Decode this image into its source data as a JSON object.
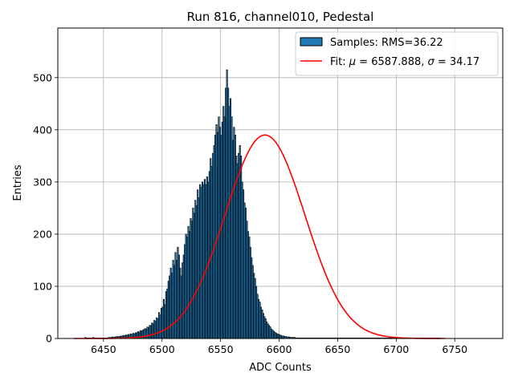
{
  "chart_data": {
    "type": "bar",
    "title": "Run 816, channel010, Pedestal",
    "xlabel": "ADC Counts",
    "ylabel": "Entries",
    "xlim": [
      6411,
      6791
    ],
    "ylim": [
      0,
      595
    ],
    "xticks": [
      6450,
      6500,
      6550,
      6600,
      6650,
      6700,
      6750
    ],
    "yticks": [
      0,
      100,
      200,
      300,
      400,
      500
    ],
    "grid": true,
    "legend_position": "top-right",
    "bar_color": "#1f77b4",
    "bar_edge_color": "#000000",
    "fit_color": "#ff0000",
    "legend": {
      "samples_label": "Samples: RMS=36.22",
      "fit_label_prefix": "Fit: ",
      "fit_mu_symbol": "μ",
      "fit_mu_text": " = 6587.888, ",
      "fit_sigma_symbol": "σ",
      "fit_sigma_text": " = 34.17"
    },
    "fit": {
      "mu": 6587.888,
      "sigma": 34.17,
      "amplitude": 390,
      "x_range": [
        6425,
        6742
      ]
    },
    "bin_start": 6434,
    "bin_width": 1,
    "counts": [
      2,
      1,
      1,
      1,
      1,
      1,
      1,
      2,
      1,
      1,
      1,
      1,
      1,
      1,
      1,
      1,
      1,
      1,
      1,
      1,
      2,
      2,
      2,
      3,
      2,
      3,
      3,
      4,
      3,
      4,
      4,
      5,
      5,
      6,
      5,
      7,
      6,
      8,
      7,
      9,
      8,
      10,
      9,
      11,
      11,
      13,
      12,
      15,
      14,
      16,
      17,
      19,
      18,
      22,
      21,
      25,
      25,
      30,
      28,
      35,
      33,
      40,
      38,
      50,
      45,
      58,
      60,
      75,
      65,
      90,
      95,
      110,
      120,
      135,
      125,
      150,
      140,
      165,
      150,
      175,
      160,
      135,
      120,
      145,
      160,
      180,
      200,
      195,
      215,
      205,
      230,
      225,
      250,
      240,
      265,
      255,
      285,
      270,
      295,
      290,
      300,
      295,
      305,
      295,
      310,
      300,
      320,
      345,
      330,
      355,
      370,
      390,
      410,
      395,
      425,
      405,
      390,
      415,
      445,
      425,
      480,
      515,
      480,
      445,
      460,
      425,
      380,
      405,
      390,
      350,
      335,
      355,
      370,
      350,
      300,
      285,
      260,
      250,
      225,
      205,
      195,
      175,
      155,
      140,
      125,
      115,
      100,
      85,
      75,
      70,
      60,
      55,
      48,
      42,
      38,
      32,
      28,
      25,
      22,
      18,
      16,
      14,
      12,
      10,
      9,
      8,
      7,
      6,
      5,
      5,
      4,
      4,
      3,
      3,
      3,
      2,
      2,
      2,
      2,
      2,
      1,
      1,
      1,
      1,
      1,
      1,
      1,
      1,
      1,
      1,
      1,
      1,
      1,
      1,
      1,
      1,
      1,
      1,
      1,
      1,
      1,
      1,
      1,
      1,
      1,
      1,
      1,
      1,
      1,
      1,
      1,
      1,
      1,
      1,
      1,
      1,
      1,
      1,
      1,
      1,
      1,
      1,
      1,
      1,
      1,
      1,
      1,
      1,
      1,
      1,
      1,
      1,
      1,
      1,
      1,
      1,
      1,
      1,
      1,
      1,
      1,
      1,
      1,
      1,
      1,
      1,
      1,
      1,
      1,
      1,
      1,
      1,
      1,
      1,
      1,
      1,
      1,
      1,
      1,
      1,
      1,
      1,
      1,
      1,
      1,
      1,
      1,
      1,
      1,
      1,
      1,
      1,
      1,
      1,
      1,
      1,
      1,
      1,
      1,
      1,
      1,
      1,
      1,
      1,
      1,
      1,
      1,
      1,
      1,
      1,
      1,
      1,
      1,
      1,
      1,
      1,
      1,
      1,
      1,
      1,
      1,
      1,
      1
    ]
  }
}
